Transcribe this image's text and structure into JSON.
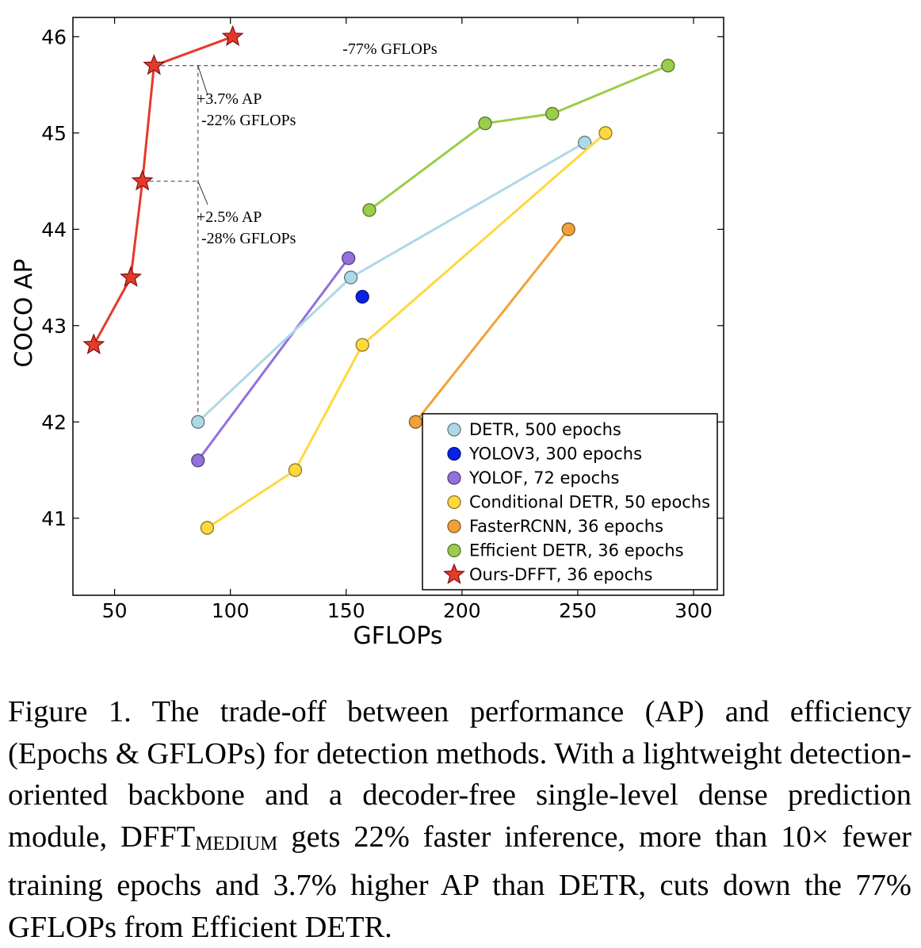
{
  "chart_data": {
    "type": "line",
    "xlabel": "GFLOPs",
    "ylabel": "COCO AP",
    "xlim": [
      32,
      313
    ],
    "ylim": [
      40.2,
      46.2
    ],
    "xticks": [
      50,
      100,
      150,
      200,
      250,
      300
    ],
    "yticks": [
      41,
      42,
      43,
      44,
      45,
      46
    ],
    "grid": false,
    "legend_position": "lower-right",
    "series": [
      {
        "name": "DETR, 500 epochs",
        "color": "#add8e6",
        "marker": "circle",
        "x": [
          86,
          152,
          253
        ],
        "y": [
          42.0,
          43.5,
          44.9
        ]
      },
      {
        "name": "YOLOV3, 300 epochs",
        "color": "#0a22e6",
        "marker": "circle",
        "x": [
          157
        ],
        "y": [
          43.3
        ]
      },
      {
        "name": "YOLOF, 72 epochs",
        "color": "#9370db",
        "marker": "circle",
        "x": [
          86,
          151
        ],
        "y": [
          41.6,
          43.7
        ]
      },
      {
        "name": "Conditional DETR, 50 epochs",
        "color": "#ffd83d",
        "marker": "circle",
        "x": [
          90,
          128,
          157,
          262
        ],
        "y": [
          40.9,
          41.5,
          42.8,
          45.0
        ]
      },
      {
        "name": "FasterRCNN, 36 epochs",
        "color": "#f0a23a",
        "marker": "circle",
        "x": [
          180,
          246
        ],
        "y": [
          42.0,
          44.0
        ]
      },
      {
        "name": "Efficient DETR, 36 epochs",
        "color": "#9acd4a",
        "marker": "circle",
        "x": [
          160,
          210,
          239,
          289
        ],
        "y": [
          44.2,
          45.1,
          45.2,
          45.7
        ]
      },
      {
        "name": "Ours-DFFT, 36 epochs",
        "color": "#e53a2a",
        "marker": "star",
        "x": [
          41,
          57,
          62,
          67,
          101
        ],
        "y": [
          42.8,
          43.5,
          44.5,
          45.7,
          46.0
        ]
      }
    ],
    "annotations": {
      "top_arrow": "-77% GFLOPs",
      "gain1_line1": "+3.7% AP",
      "gain1_line2": "-22% GFLOPs",
      "gain2_line1": "+2.5% AP",
      "gain2_line2": "-28% GFLOPs"
    }
  },
  "caption": {
    "lead": "Figure 1. The trade-off between performance (AP) and efficiency (Epochs & GFLOPs) for detection methods.  With a lightweight detection-oriented backbone and a decoder-free single-level dense prediction module, ",
    "model": "DFFT",
    "subscript": "MEDIUM",
    "tail": " gets 22% faster inference, more than 10× fewer training epochs and 3.7% higher AP than DETR, cuts down the 77% GFLOPs from Efficient DETR."
  }
}
